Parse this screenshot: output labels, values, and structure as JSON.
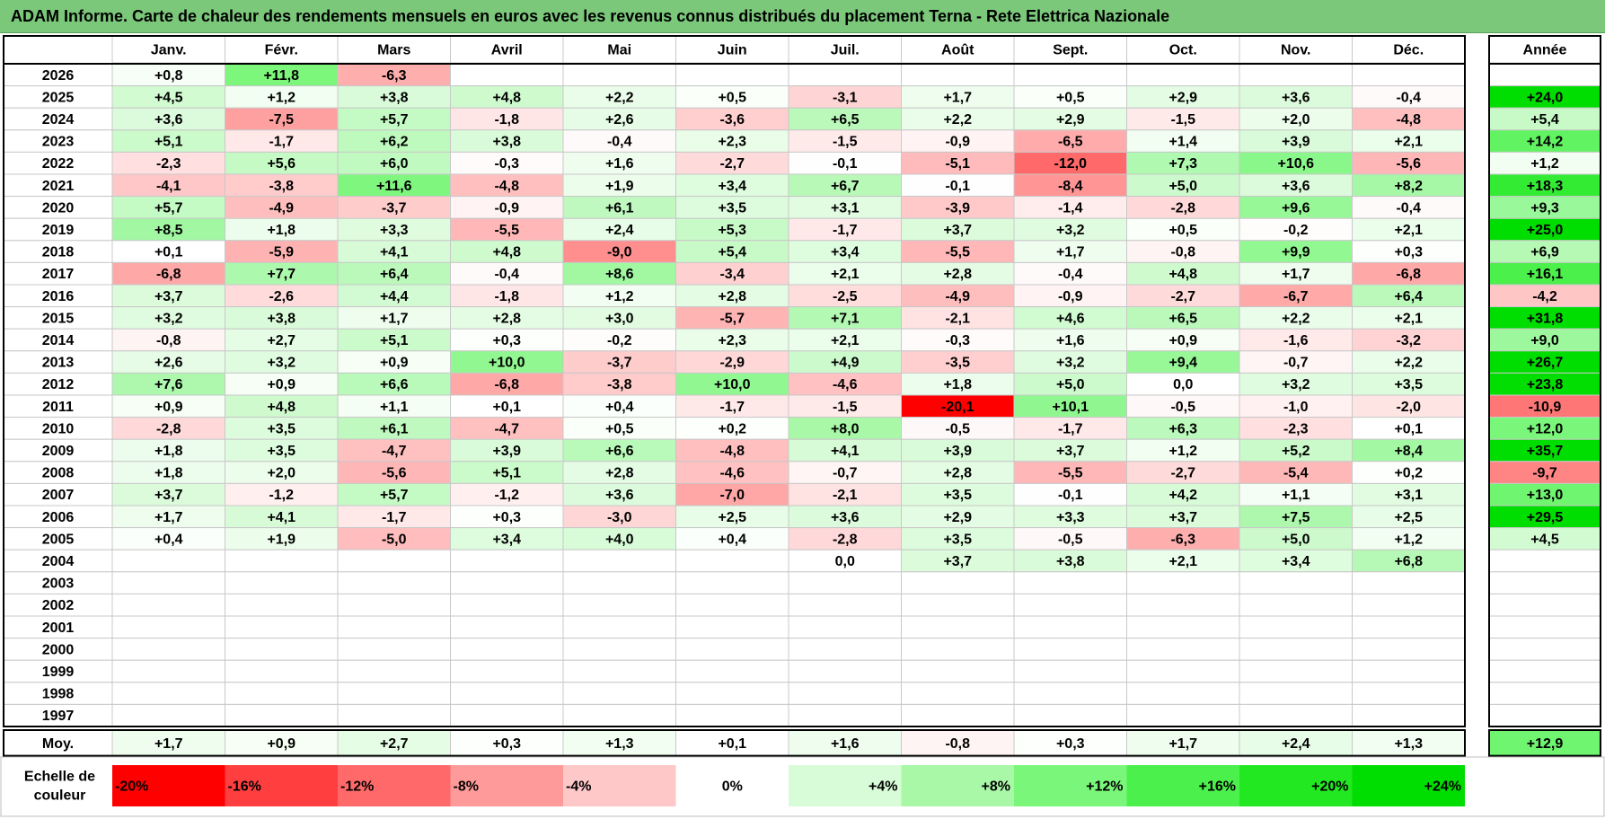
{
  "title": "ADAM Informe. Carte de chaleur des rendements mensuels en euros avec les revenus connus distribués du placement Terna - Rete Elettrica Nazionale",
  "chart_data": {
    "type": "heatmap",
    "columns": [
      "Janv.",
      "Févr.",
      "Mars",
      "Avril",
      "Mai",
      "Juin",
      "Juil.",
      "Août",
      "Sept.",
      "Oct.",
      "Nov.",
      "Déc."
    ],
    "year_column_label": "Année",
    "rows": [
      {
        "year": "2026",
        "values": [
          "+0,8",
          "+11,8",
          "-6,3",
          "",
          "",
          "",
          "",
          "",
          "",
          "",
          "",
          ""
        ],
        "annual": ""
      },
      {
        "year": "2025",
        "values": [
          "+4,5",
          "+1,2",
          "+3,8",
          "+4,8",
          "+2,2",
          "+0,5",
          "-3,1",
          "+1,7",
          "+0,5",
          "+2,9",
          "+3,6",
          "-0,4"
        ],
        "annual": "+24,0"
      },
      {
        "year": "2024",
        "values": [
          "+3,6",
          "-7,5",
          "+5,7",
          "-1,8",
          "+2,6",
          "-3,6",
          "+6,5",
          "+2,2",
          "+2,9",
          "-1,5",
          "+2,0",
          "-4,8"
        ],
        "annual": "+5,4"
      },
      {
        "year": "2023",
        "values": [
          "+5,1",
          "-1,7",
          "+6,2",
          "+3,8",
          "-0,4",
          "+2,3",
          "-1,5",
          "-0,9",
          "-6,5",
          "+1,4",
          "+3,9",
          "+2,1"
        ],
        "annual": "+14,2"
      },
      {
        "year": "2022",
        "values": [
          "-2,3",
          "+5,6",
          "+6,0",
          "-0,3",
          "+1,6",
          "-2,7",
          "-0,1",
          "-5,1",
          "-12,0",
          "+7,3",
          "+10,6",
          "-5,6"
        ],
        "annual": "+1,2"
      },
      {
        "year": "2021",
        "values": [
          "-4,1",
          "-3,8",
          "+11,6",
          "-4,8",
          "+1,9",
          "+3,4",
          "+6,7",
          "-0,1",
          "-8,4",
          "+5,0",
          "+3,6",
          "+8,2"
        ],
        "annual": "+18,3"
      },
      {
        "year": "2020",
        "values": [
          "+5,7",
          "-4,9",
          "-3,7",
          "-0,9",
          "+6,1",
          "+3,5",
          "+3,1",
          "-3,9",
          "-1,4",
          "-2,8",
          "+9,6",
          "-0,4"
        ],
        "annual": "+9,3"
      },
      {
        "year": "2019",
        "values": [
          "+8,5",
          "+1,8",
          "+3,3",
          "-5,5",
          "+2,4",
          "+5,3",
          "-1,7",
          "+3,7",
          "+3,2",
          "+0,5",
          "-0,2",
          "+2,1"
        ],
        "annual": "+25,0"
      },
      {
        "year": "2018",
        "values": [
          "+0,1",
          "-5,9",
          "+4,1",
          "+4,8",
          "-9,0",
          "+5,4",
          "+3,4",
          "-5,5",
          "+1,7",
          "-0,8",
          "+9,9",
          "+0,3"
        ],
        "annual": "+6,9"
      },
      {
        "year": "2017",
        "values": [
          "-6,8",
          "+7,7",
          "+6,4",
          "-0,4",
          "+8,6",
          "-3,4",
          "+2,1",
          "+2,8",
          "-0,4",
          "+4,8",
          "+1,7",
          "-6,8"
        ],
        "annual": "+16,1"
      },
      {
        "year": "2016",
        "values": [
          "+3,7",
          "-2,6",
          "+4,4",
          "-1,8",
          "+1,2",
          "+2,8",
          "-2,5",
          "-4,9",
          "-0,9",
          "-2,7",
          "-6,7",
          "+6,4"
        ],
        "annual": "-4,2"
      },
      {
        "year": "2015",
        "values": [
          "+3,2",
          "+3,8",
          "+1,7",
          "+2,8",
          "+3,0",
          "-5,7",
          "+7,1",
          "-2,1",
          "+4,6",
          "+6,5",
          "+2,2",
          "+2,1"
        ],
        "annual": "+31,8"
      },
      {
        "year": "2014",
        "values": [
          "-0,8",
          "+2,7",
          "+5,1",
          "+0,3",
          "-0,2",
          "+2,3",
          "+2,1",
          "-0,3",
          "+1,6",
          "+0,9",
          "-1,6",
          "-3,2"
        ],
        "annual": "+9,0"
      },
      {
        "year": "2013",
        "values": [
          "+2,6",
          "+3,2",
          "+0,9",
          "+10,0",
          "-3,7",
          "-2,9",
          "+4,9",
          "-3,5",
          "+3,2",
          "+9,4",
          "-0,7",
          "+2,2"
        ],
        "annual": "+26,7"
      },
      {
        "year": "2012",
        "values": [
          "+7,6",
          "+0,9",
          "+6,6",
          "-6,8",
          "-3,8",
          "+10,0",
          "-4,6",
          "+1,8",
          "+5,0",
          "0,0",
          "+3,2",
          "+3,5"
        ],
        "annual": "+23,8"
      },
      {
        "year": "2011",
        "values": [
          "+0,9",
          "+4,8",
          "+1,1",
          "+0,1",
          "+0,4",
          "-1,7",
          "-1,5",
          "-20,1",
          "+10,1",
          "-0,5",
          "-1,0",
          "-2,0"
        ],
        "annual": "-10,9"
      },
      {
        "year": "2010",
        "values": [
          "-2,8",
          "+3,5",
          "+6,1",
          "-4,7",
          "+0,5",
          "+0,2",
          "+8,0",
          "-0,5",
          "-1,7",
          "+6,3",
          "-2,3",
          "+0,1"
        ],
        "annual": "+12,0"
      },
      {
        "year": "2009",
        "values": [
          "+1,8",
          "+3,5",
          "-4,7",
          "+3,9",
          "+6,6",
          "-4,8",
          "+4,1",
          "+3,9",
          "+3,7",
          "+1,2",
          "+5,2",
          "+8,4"
        ],
        "annual": "+35,7"
      },
      {
        "year": "2008",
        "values": [
          "+1,8",
          "+2,0",
          "-5,6",
          "+5,1",
          "+2,8",
          "-4,6",
          "-0,7",
          "+2,8",
          "-5,5",
          "-2,7",
          "-5,4",
          "+0,2"
        ],
        "annual": "-9,7"
      },
      {
        "year": "2007",
        "values": [
          "+3,7",
          "-1,2",
          "+5,7",
          "-1,2",
          "+3,6",
          "-7,0",
          "-2,1",
          "+3,5",
          "-0,1",
          "+4,2",
          "+1,1",
          "+3,1"
        ],
        "annual": "+13,0"
      },
      {
        "year": "2006",
        "values": [
          "+1,7",
          "+4,1",
          "-1,7",
          "+0,3",
          "-3,0",
          "+2,5",
          "+3,6",
          "+2,9",
          "+3,3",
          "+3,7",
          "+7,5",
          "+2,5"
        ],
        "annual": "+29,5"
      },
      {
        "year": "2005",
        "values": [
          "+0,4",
          "+1,9",
          "-5,0",
          "+3,4",
          "+4,0",
          "+0,4",
          "-2,8",
          "+3,5",
          "-0,5",
          "-6,3",
          "+5,0",
          "+1,2"
        ],
        "annual": "+4,5"
      },
      {
        "year": "2004",
        "values": [
          "",
          "",
          "",
          "",
          "",
          "",
          "0,0",
          "+3,7",
          "+3,8",
          "+2,1",
          "+3,4",
          "+6,8"
        ],
        "annual": ""
      },
      {
        "year": "2003",
        "values": [
          "",
          "",
          "",
          "",
          "",
          "",
          "",
          "",
          "",
          "",
          "",
          ""
        ],
        "annual": ""
      },
      {
        "year": "2002",
        "values": [
          "",
          "",
          "",
          "",
          "",
          "",
          "",
          "",
          "",
          "",
          "",
          ""
        ],
        "annual": ""
      },
      {
        "year": "2001",
        "values": [
          "",
          "",
          "",
          "",
          "",
          "",
          "",
          "",
          "",
          "",
          "",
          ""
        ],
        "annual": ""
      },
      {
        "year": "2000",
        "values": [
          "",
          "",
          "",
          "",
          "",
          "",
          "",
          "",
          "",
          "",
          "",
          ""
        ],
        "annual": ""
      },
      {
        "year": "1999",
        "values": [
          "",
          "",
          "",
          "",
          "",
          "",
          "",
          "",
          "",
          "",
          "",
          ""
        ],
        "annual": ""
      },
      {
        "year": "1998",
        "values": [
          "",
          "",
          "",
          "",
          "",
          "",
          "",
          "",
          "",
          "",
          "",
          ""
        ],
        "annual": ""
      },
      {
        "year": "1997",
        "values": [
          "",
          "",
          "",
          "",
          "",
          "",
          "",
          "",
          "",
          "",
          "",
          ""
        ],
        "annual": ""
      }
    ],
    "average": {
      "label": "Moy.",
      "values": [
        "+1,7",
        "+0,9",
        "+2,7",
        "+0,3",
        "+1,3",
        "+0,1",
        "+1,6",
        "-0,8",
        "+0,3",
        "+1,7",
        "+2,4",
        "+1,3"
      ],
      "annual": "+12,9"
    },
    "scale": {
      "label_lines": [
        "Echelle de",
        "couleur"
      ],
      "steps": [
        {
          "label": "-20%",
          "value": -20,
          "color": "#ff0000",
          "align": "left"
        },
        {
          "label": "-16%",
          "value": -16,
          "color": "#ff3f3f",
          "align": "left"
        },
        {
          "label": "-12%",
          "value": -12,
          "color": "#ff6969",
          "align": "left"
        },
        {
          "label": "-8%",
          "value": -8,
          "color": "#ff9a9a",
          "align": "left"
        },
        {
          "label": "-4%",
          "value": -4,
          "color": "#ffc8c8",
          "align": "left"
        },
        {
          "label": "0%",
          "value": 0,
          "color": "#ffffff",
          "align": "center"
        },
        {
          "label": "+4%",
          "value": 4,
          "color": "#d8fbd8",
          "align": "right"
        },
        {
          "label": "+8%",
          "value": 8,
          "color": "#a8f8a8",
          "align": "right"
        },
        {
          "label": "+12%",
          "value": 12,
          "color": "#7af77a",
          "align": "right"
        },
        {
          "label": "+16%",
          "value": 16,
          "color": "#4cf04c",
          "align": "right"
        },
        {
          "label": "+20%",
          "value": 20,
          "color": "#22e822",
          "align": "right"
        },
        {
          "label": "+24%",
          "value": 24,
          "color": "#00dd00",
          "align": "right"
        }
      ]
    }
  }
}
